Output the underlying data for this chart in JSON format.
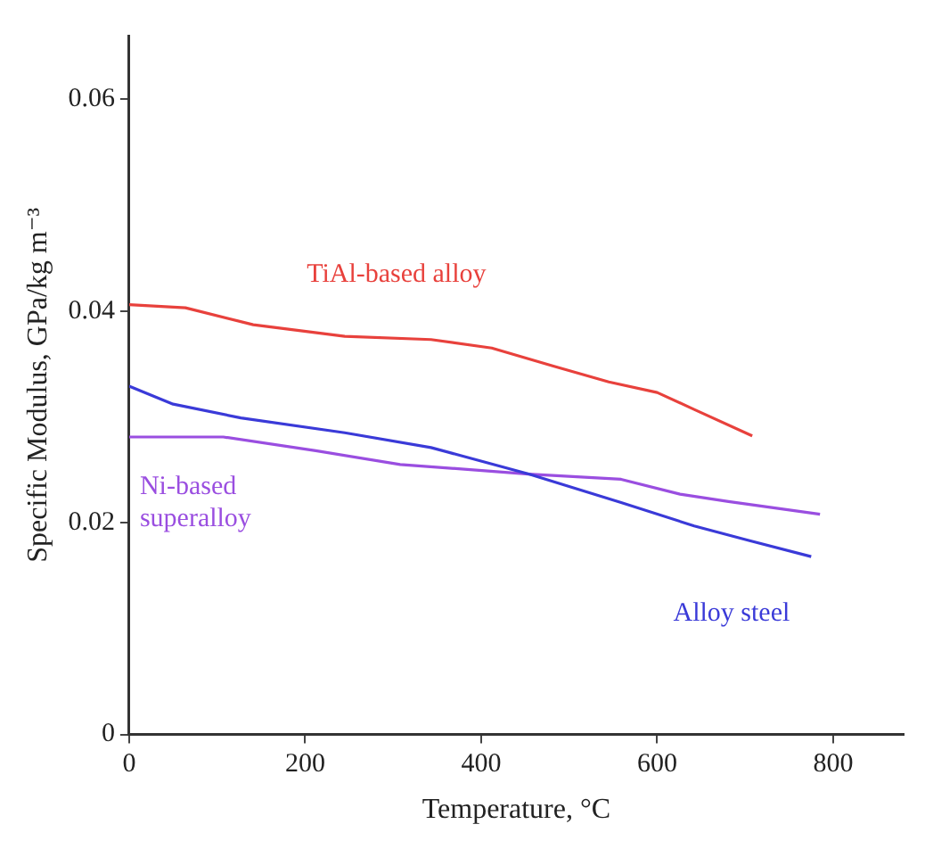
{
  "chart_data": {
    "type": "line",
    "xlabel": "Temperature, °C",
    "ylabel": "Specific Modulus, GPa/kg m⁻³",
    "xlim": [
      0,
      880
    ],
    "xticks": [
      0,
      200,
      400,
      600,
      800
    ],
    "ylim": [
      0,
      0.066
    ],
    "yticks": [
      0,
      0.02,
      0.04,
      0.06
    ],
    "grid": false,
    "legend": false,
    "marker": "none",
    "line_style": "solid",
    "series": [
      {
        "name": "TiAl-based alloy",
        "color": "#e8413c",
        "x": [
          0,
          64,
          141,
          245,
          343,
          412,
          482,
          545,
          600,
          642,
          708
        ],
        "values": [
          0.0406,
          0.0403,
          0.0387,
          0.0376,
          0.0373,
          0.0365,
          0.0348,
          0.0333,
          0.0323,
          0.0307,
          0.0282
        ]
      },
      {
        "name": "Alloy steel",
        "color": "#3a3ad8",
        "x": [
          0,
          50,
          127,
          245,
          343,
          454,
          559,
          642,
          705,
          775
        ],
        "values": [
          0.0329,
          0.0312,
          0.0299,
          0.0285,
          0.0271,
          0.0246,
          0.0219,
          0.0197,
          0.0183,
          0.0168
        ]
      },
      {
        "name": "Ni-based superalloy",
        "color": "#9a4ee0",
        "x": [
          0,
          107,
          212,
          308,
          454,
          559,
          626,
          681,
          785
        ],
        "values": [
          0.0281,
          0.0281,
          0.0268,
          0.0255,
          0.0246,
          0.0241,
          0.0227,
          0.022,
          0.0208
        ]
      }
    ]
  }
}
